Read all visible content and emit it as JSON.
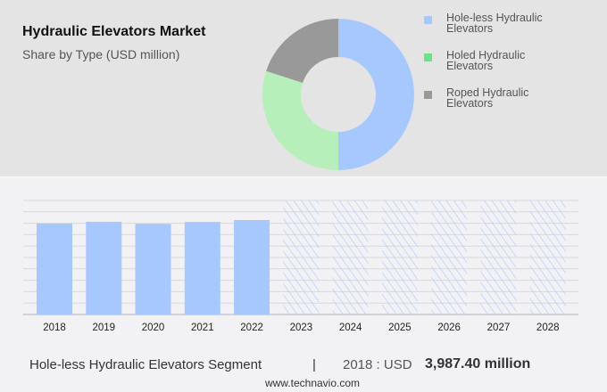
{
  "header": {
    "title": "Hydraulic Elevators Market",
    "subtitle": "Share by Type (USD million)"
  },
  "colors": {
    "holeless": "#a6c8ff",
    "holed": "#b6efba",
    "roped": "#999999",
    "legend_holed": "#6fe08a",
    "grid": "#d8d8dc"
  },
  "chart_data": [
    {
      "type": "pie",
      "donut": true,
      "categories": [
        "Hole-less Hydraulic Elevators",
        "Holed Hydraulic Elevators",
        "Roped Hydraulic Elevators"
      ],
      "values": [
        50,
        30,
        20
      ]
    },
    {
      "type": "bar",
      "categories": [
        "2018",
        "2019",
        "2020",
        "2021",
        "2022",
        "2023",
        "2024",
        "2025",
        "2026",
        "2027",
        "2028"
      ],
      "values": [
        3987.4,
        4066,
        3975,
        4060,
        4140,
        null,
        null,
        null,
        null,
        null,
        null
      ],
      "forecast_hatched": [
        "2023",
        "2024",
        "2025",
        "2026",
        "2027",
        "2028"
      ],
      "ylim": [
        0,
        5000
      ],
      "grid": true
    }
  ],
  "footer": {
    "segment": "Hole-less Hydraulic Elevators Segment",
    "separator": "|",
    "year_label": "2018 : USD",
    "value": "3,987.40 million",
    "url": "www.technavio.com"
  }
}
